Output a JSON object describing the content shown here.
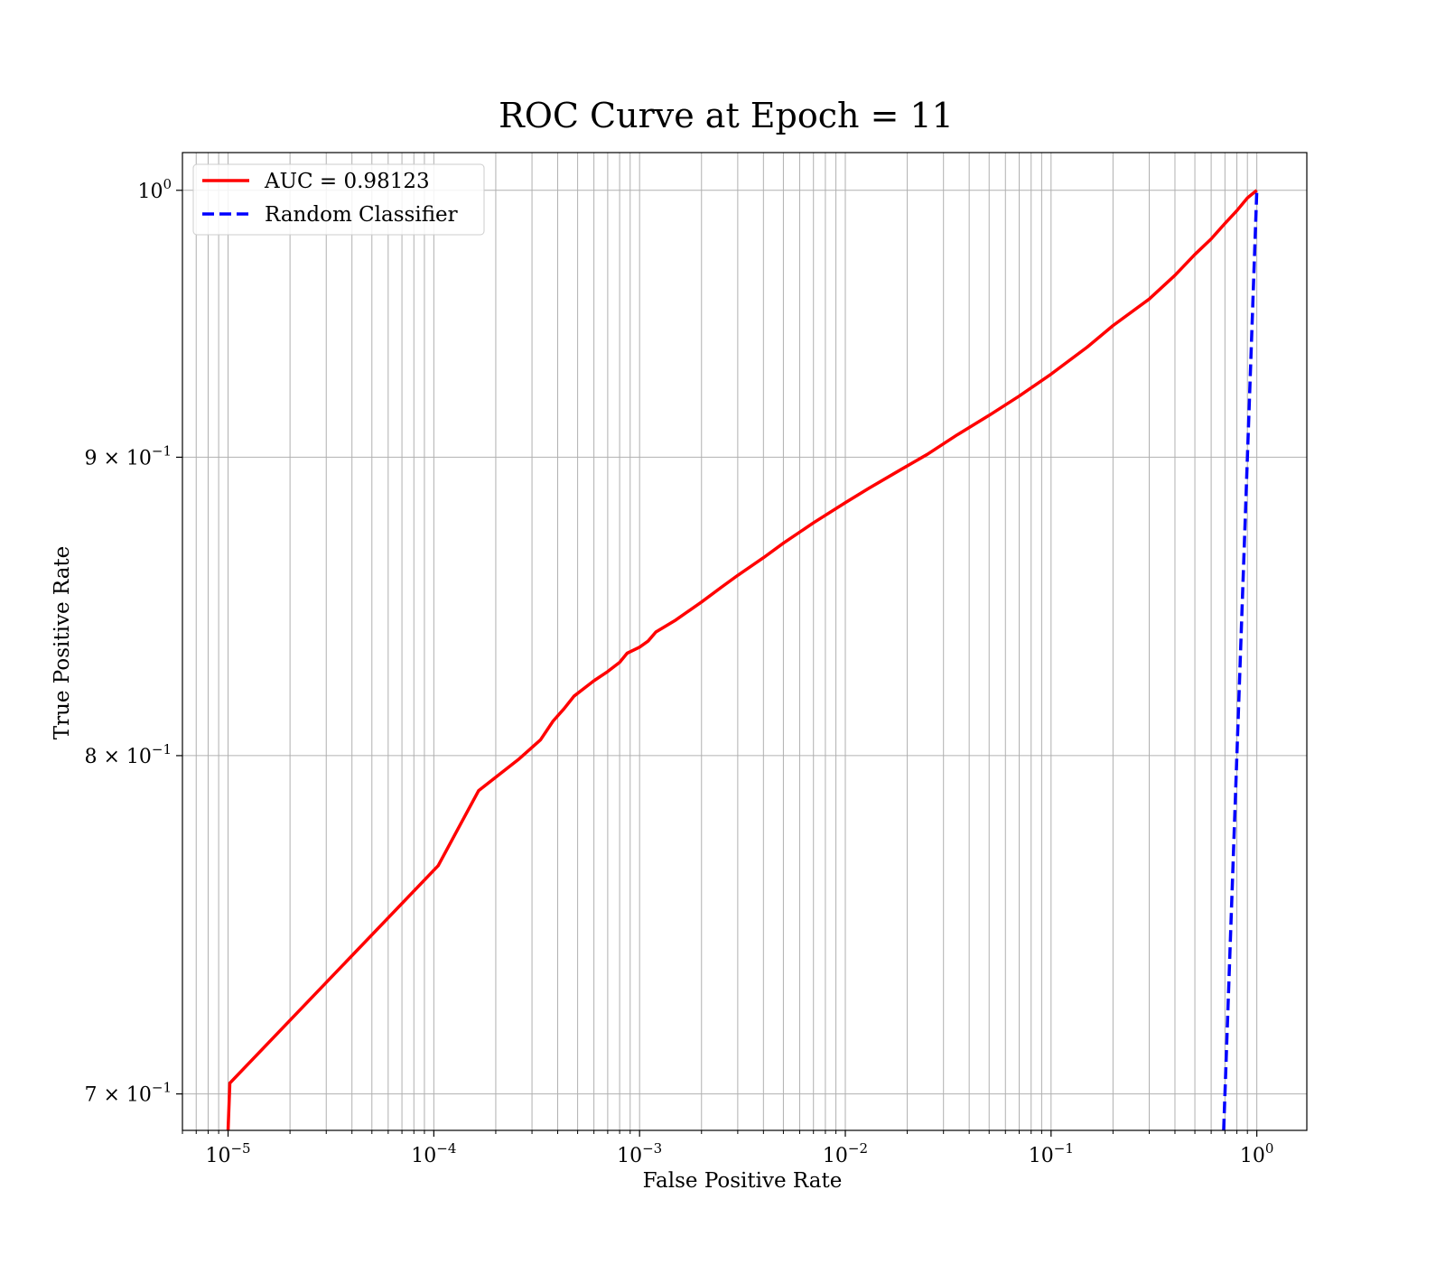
{
  "chart_data": {
    "type": "line",
    "title": "ROC Curve at Epoch = 11",
    "xlabel": "False Positive Rate",
    "ylabel": "True Positive Rate",
    "xscale": "log",
    "yscale": "log",
    "xlim": [
      6e-06,
      1.75
    ],
    "ylim": [
      0.69,
      1.015
    ],
    "grid": "on (major and minor, both axes)",
    "legend_position": "top-left",
    "x_ticks": [
      {
        "value": 1e-05,
        "label": "10",
        "exp": "−5"
      },
      {
        "value": 0.0001,
        "label": "10",
        "exp": "−4"
      },
      {
        "value": 0.001,
        "label": "10",
        "exp": "−3"
      },
      {
        "value": 0.01,
        "label": "10",
        "exp": "−2"
      },
      {
        "value": 0.1,
        "label": "10",
        "exp": "−1"
      },
      {
        "value": 1,
        "label": "10",
        "exp": "0"
      }
    ],
    "y_ticks": [
      {
        "value": 0.7,
        "label": "7 × 10",
        "exp": "−1"
      },
      {
        "value": 0.8,
        "label": "8 × 10",
        "exp": "−1"
      },
      {
        "value": 0.9,
        "label": "9 × 10",
        "exp": "−1"
      },
      {
        "value": 1.0,
        "label": "10",
        "exp": "0"
      }
    ],
    "series": [
      {
        "name": "AUC = 0.98123",
        "color": "#ff0000",
        "style": "solid",
        "x": [
          1e-05,
          1.02e-05,
          0.000105,
          0.000165,
          0.00026,
          0.00033,
          0.00038,
          0.00043,
          0.00048,
          0.0006,
          0.0007,
          0.0008,
          0.00087,
          0.001,
          0.0011,
          0.0012,
          0.0015,
          0.002,
          0.0025,
          0.003,
          0.004,
          0.005,
          0.007,
          0.01,
          0.013,
          0.018,
          0.025,
          0.035,
          0.05,
          0.07,
          0.1,
          0.15,
          0.2,
          0.3,
          0.4,
          0.5,
          0.6,
          0.7,
          0.8,
          0.9,
          1.0
        ],
        "y": [
          0.69,
          0.703,
          0.766,
          0.789,
          0.799,
          0.805,
          0.811,
          0.815,
          0.819,
          0.824,
          0.827,
          0.83,
          0.833,
          0.835,
          0.837,
          0.84,
          0.844,
          0.85,
          0.855,
          0.859,
          0.865,
          0.87,
          0.877,
          0.884,
          0.889,
          0.895,
          0.901,
          0.908,
          0.915,
          0.922,
          0.93,
          0.94,
          0.948,
          0.958,
          0.967,
          0.975,
          0.981,
          0.987,
          0.992,
          0.997,
          1.0
        ]
      },
      {
        "name": "Random Classifier",
        "color": "#0000ff",
        "style": "dashed",
        "x": [
          0.69,
          1.0
        ],
        "y": [
          0.69,
          1.0
        ]
      }
    ]
  }
}
